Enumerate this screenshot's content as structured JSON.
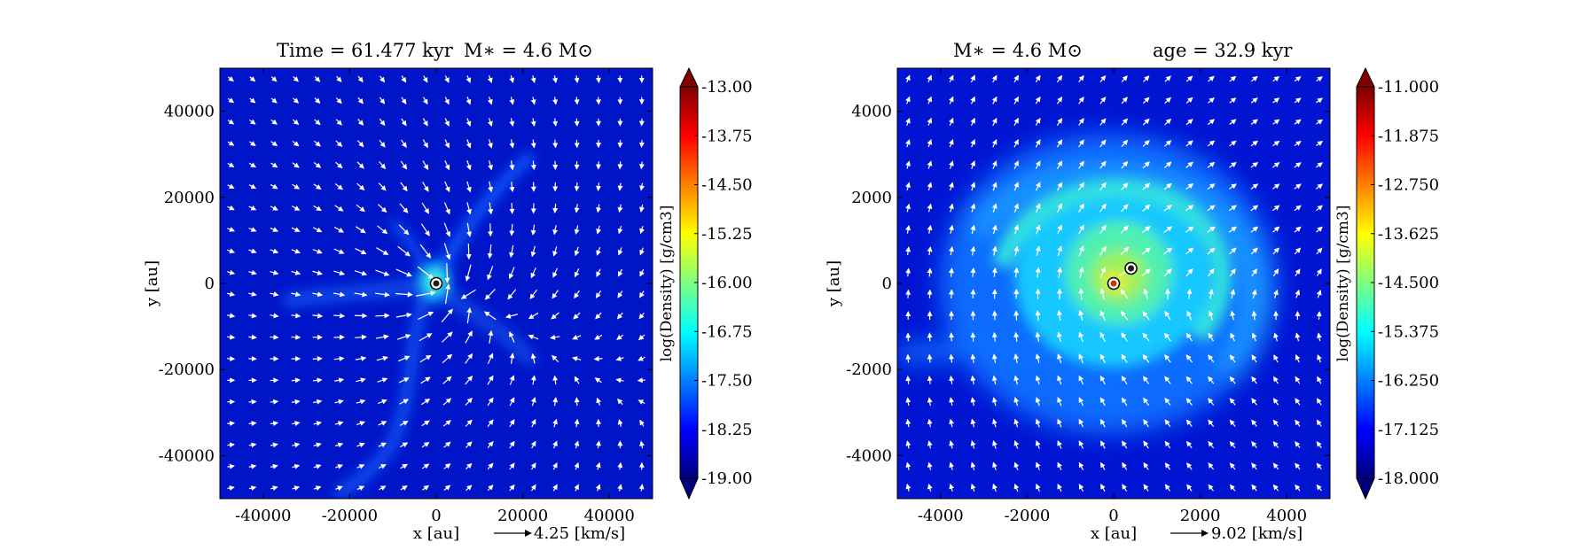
{
  "chart_data": [
    {
      "type": "heatmap",
      "title_left": "Time = 61.477 kyr",
      "title_right": "M∗ = 4.6 M⊙",
      "xlabel": "x [au]",
      "ylabel": "y [au]",
      "xlim": [
        -50000,
        50000
      ],
      "ylim": [
        -50000,
        50000
      ],
      "xticks": [
        -40000,
        -20000,
        0,
        20000,
        40000
      ],
      "yticks": [
        -40000,
        -20000,
        0,
        20000,
        40000
      ],
      "xtick_labels": [
        "-40000",
        "-20000",
        "0",
        "20000",
        "40000"
      ],
      "ytick_labels": [
        "-40000",
        "-20000",
        "0",
        "20000",
        "40000"
      ],
      "velocity_scale_label": "4.25 [km/s]",
      "colorbar": {
        "label": "log(Density) [g/cm3]",
        "min": -19.0,
        "max": -13.0,
        "ticks": [
          "-13.00",
          "-13.75",
          "-14.50",
          "-15.25",
          "-16.00",
          "-16.75",
          "-17.50",
          "-18.25",
          "-19.00"
        ]
      },
      "sinks": [
        {
          "x": 0,
          "y": 0
        }
      ]
    },
    {
      "type": "heatmap",
      "title_left": "M∗ = 4.6 M⊙",
      "title_right": "age = 32.9 kyr",
      "xlabel": "x [au]",
      "ylabel": "y [au]",
      "xlim": [
        -5000,
        5000
      ],
      "ylim": [
        -5000,
        5000
      ],
      "xticks": [
        -4000,
        -2000,
        0,
        2000,
        4000
      ],
      "yticks": [
        -4000,
        -2000,
        0,
        2000,
        4000
      ],
      "xtick_labels": [
        "-4000",
        "-2000",
        "0",
        "2000",
        "4000"
      ],
      "ytick_labels": [
        "-4000",
        "-2000",
        "0",
        "2000",
        "4000"
      ],
      "velocity_scale_label": "9.02 [km/s]",
      "colorbar": {
        "label": "log(Density) [g/cm3]",
        "min": -18.0,
        "max": -11.0,
        "ticks": [
          "-11.000",
          "-11.875",
          "-12.750",
          "-13.625",
          "-14.500",
          "-15.375",
          "-16.250",
          "-17.125",
          "-18.000"
        ]
      },
      "sinks": [
        {
          "x": 0,
          "y": 0
        },
        {
          "x": 400,
          "y": 350
        }
      ]
    }
  ]
}
